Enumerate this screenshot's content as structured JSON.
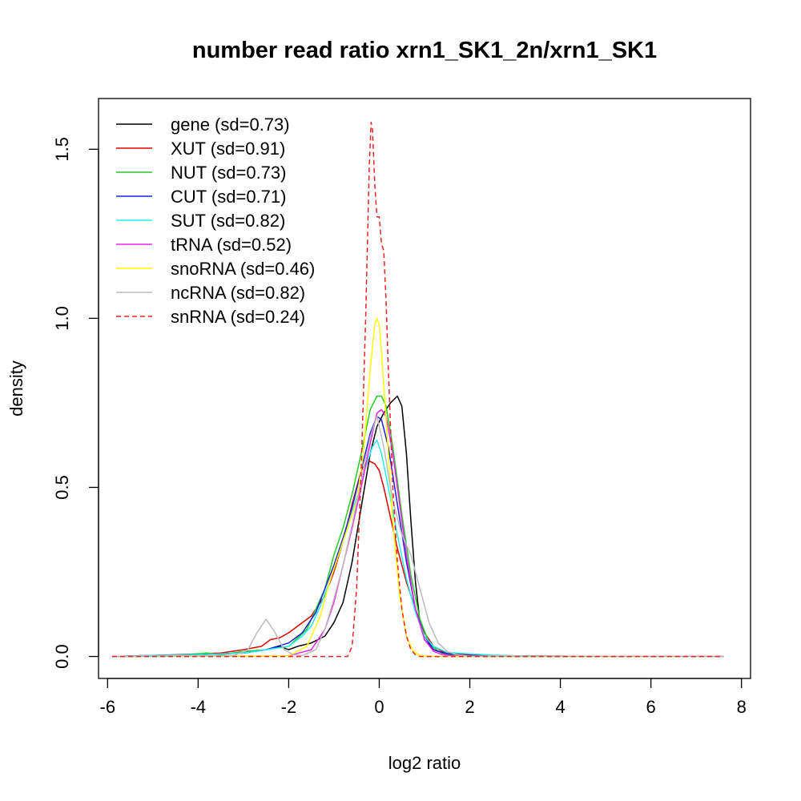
{
  "chart_data": {
    "type": "line",
    "title": "number read ratio xrn1_SK1_2n/xrn1_SK1",
    "xlabel": "log2 ratio",
    "ylabel": "density",
    "xlim": [
      -6.2,
      8.2
    ],
    "ylim": [
      -0.065,
      1.65
    ],
    "xticks": [
      -6,
      -4,
      -2,
      0,
      2,
      4,
      6,
      8
    ],
    "yticks": [
      0.0,
      0.5,
      1.0,
      1.5
    ],
    "xtick_labels": [
      "-6",
      "-4",
      "-2",
      "0",
      "2",
      "4",
      "6",
      "8"
    ],
    "ytick_labels": [
      "0.0",
      "0.5",
      "1.0",
      "1.5"
    ],
    "grid": false,
    "legend_position": "top-left",
    "series": [
      {
        "name": "gene (sd=0.73)",
        "color": "#000000",
        "dash": "solid",
        "x": [
          -5.9,
          -4.0,
          -3.0,
          -2.5,
          -2.2,
          -2.0,
          -1.8,
          -1.5,
          -1.2,
          -1.0,
          -0.8,
          -0.6,
          -0.4,
          -0.2,
          -0.05,
          0.1,
          0.25,
          0.4,
          0.5,
          0.6,
          0.7,
          0.8,
          0.9,
          1.0,
          1.2,
          1.4,
          1.6,
          2.0,
          3.0,
          5.0,
          7.6
        ],
        "y": [
          0.0,
          0.005,
          0.01,
          0.02,
          0.03,
          0.02,
          0.03,
          0.04,
          0.06,
          0.1,
          0.16,
          0.28,
          0.44,
          0.6,
          0.68,
          0.72,
          0.75,
          0.77,
          0.74,
          0.6,
          0.4,
          0.22,
          0.1,
          0.05,
          0.02,
          0.01,
          0.005,
          0.0,
          0.0,
          0.0,
          0.0
        ]
      },
      {
        "name": "XUT (sd=0.91)",
        "color": "#df0000",
        "dash": "solid",
        "x": [
          -5.9,
          -4.5,
          -3.5,
          -3.0,
          -2.6,
          -2.4,
          -2.2,
          -2.0,
          -1.8,
          -1.5,
          -1.2,
          -1.0,
          -0.8,
          -0.6,
          -0.4,
          -0.25,
          -0.1,
          0.0,
          0.1,
          0.2,
          0.4,
          0.6,
          0.8,
          1.0,
          1.2,
          1.4,
          1.6,
          2.0,
          2.5,
          3.0,
          4.0,
          5.0,
          7.6
        ],
        "y": [
          0.0,
          0.005,
          0.01,
          0.02,
          0.03,
          0.05,
          0.055,
          0.07,
          0.09,
          0.12,
          0.18,
          0.25,
          0.34,
          0.45,
          0.55,
          0.58,
          0.57,
          0.55,
          0.5,
          0.44,
          0.32,
          0.22,
          0.14,
          0.07,
          0.03,
          0.015,
          0.008,
          0.005,
          0.003,
          0.002,
          0.001,
          0.0,
          0.0
        ]
      },
      {
        "name": "NUT (sd=0.73)",
        "color": "#22cc22",
        "dash": "solid",
        "x": [
          -5.9,
          -4.5,
          -3.8,
          -3.5,
          -3.0,
          -2.5,
          -2.0,
          -1.6,
          -1.2,
          -1.0,
          -0.8,
          -0.6,
          -0.4,
          -0.2,
          -0.05,
          0.05,
          0.15,
          0.3,
          0.5,
          0.7,
          0.9,
          1.1,
          1.3,
          1.6,
          2.0,
          3.0,
          7.6
        ],
        "y": [
          0.0,
          0.003,
          0.01,
          0.005,
          0.015,
          0.02,
          0.03,
          0.08,
          0.2,
          0.3,
          0.38,
          0.48,
          0.6,
          0.73,
          0.77,
          0.77,
          0.74,
          0.62,
          0.42,
          0.24,
          0.11,
          0.04,
          0.015,
          0.005,
          0.0,
          0.0,
          0.0
        ]
      },
      {
        "name": "CUT (sd=0.71)",
        "color": "#2020dd",
        "dash": "solid",
        "x": [
          -5.9,
          -5.0,
          -4.0,
          -3.0,
          -2.5,
          -2.0,
          -1.7,
          -1.4,
          -1.2,
          -1.0,
          -0.8,
          -0.6,
          -0.4,
          -0.2,
          -0.05,
          0.05,
          0.2,
          0.4,
          0.6,
          0.8,
          1.0,
          1.2,
          1.5,
          2.0,
          3.0,
          7.6
        ],
        "y": [
          0.0,
          0.003,
          0.005,
          0.01,
          0.02,
          0.04,
          0.07,
          0.13,
          0.2,
          0.27,
          0.35,
          0.44,
          0.55,
          0.66,
          0.71,
          0.7,
          0.62,
          0.45,
          0.28,
          0.14,
          0.06,
          0.02,
          0.008,
          0.003,
          0.0,
          0.0
        ]
      },
      {
        "name": "SUT (sd=0.82)",
        "color": "#22eeee",
        "dash": "solid",
        "x": [
          -5.9,
          -5.0,
          -4.0,
          -3.0,
          -2.5,
          -2.0,
          -1.7,
          -1.5,
          -1.3,
          -1.1,
          -0.9,
          -0.7,
          -0.5,
          -0.3,
          -0.15,
          -0.05,
          0.05,
          0.2,
          0.4,
          0.6,
          0.8,
          1.0,
          1.2,
          1.5,
          2.0,
          2.5,
          3.0,
          4.0,
          7.6
        ],
        "y": [
          0.0,
          0.003,
          0.005,
          0.01,
          0.02,
          0.03,
          0.06,
          0.09,
          0.15,
          0.22,
          0.3,
          0.38,
          0.47,
          0.56,
          0.62,
          0.64,
          0.6,
          0.5,
          0.36,
          0.23,
          0.13,
          0.06,
          0.03,
          0.012,
          0.008,
          0.004,
          0.002,
          0.001,
          0.0
        ]
      },
      {
        "name": "tRNA (sd=0.52)",
        "color": "#ee22ee",
        "dash": "solid",
        "x": [
          -5.9,
          -2.0,
          -1.5,
          -1.2,
          -1.0,
          -0.8,
          -0.6,
          -0.4,
          -0.2,
          -0.05,
          0.05,
          0.15,
          0.3,
          0.45,
          0.6,
          0.8,
          1.0,
          1.2,
          1.4,
          1.6,
          2.0,
          7.6
        ],
        "y": [
          0.0,
          0.002,
          0.02,
          0.08,
          0.16,
          0.27,
          0.38,
          0.5,
          0.63,
          0.72,
          0.73,
          0.71,
          0.6,
          0.45,
          0.3,
          0.14,
          0.05,
          0.015,
          0.005,
          0.002,
          0.0,
          0.0
        ]
      },
      {
        "name": "snoRNA (sd=0.46)",
        "color": "#ffff00",
        "dash": "solid",
        "x": [
          -5.9,
          -2.0,
          -1.6,
          -1.3,
          -1.1,
          -0.9,
          -0.7,
          -0.5,
          -0.35,
          -0.2,
          -0.1,
          -0.05,
          0.0,
          0.05,
          0.15,
          0.3,
          0.45,
          0.6,
          0.75,
          0.9,
          1.1,
          1.3,
          7.6
        ],
        "y": [
          0.0,
          0.002,
          0.03,
          0.12,
          0.22,
          0.3,
          0.38,
          0.46,
          0.6,
          0.85,
          0.98,
          1.0,
          0.98,
          0.9,
          0.7,
          0.4,
          0.18,
          0.06,
          0.015,
          0.003,
          0.001,
          0.0,
          0.0
        ]
      },
      {
        "name": "ncRNA (sd=0.82)",
        "color": "#bbbbbb",
        "dash": "solid",
        "x": [
          -5.9,
          -3.2,
          -2.9,
          -2.7,
          -2.5,
          -2.3,
          -2.1,
          -1.9,
          -1.7,
          -1.4,
          -1.2,
          -1.0,
          -0.8,
          -0.6,
          -0.4,
          -0.2,
          -0.05,
          0.1,
          0.3,
          0.5,
          0.7,
          0.9,
          1.1,
          1.3,
          1.5,
          1.7,
          2.0,
          7.6
        ],
        "y": [
          0.0,
          0.003,
          0.02,
          0.07,
          0.11,
          0.07,
          0.02,
          0.005,
          0.003,
          0.02,
          0.08,
          0.17,
          0.27,
          0.39,
          0.52,
          0.65,
          0.71,
          0.62,
          0.46,
          0.36,
          0.3,
          0.2,
          0.1,
          0.04,
          0.015,
          0.005,
          0.001,
          0.0
        ]
      },
      {
        "name": "snRNA (sd=0.24)",
        "color": "#ee2222",
        "dash": "dashed",
        "x": [
          -5.9,
          -1.0,
          -0.7,
          -0.6,
          -0.5,
          -0.4,
          -0.3,
          -0.22,
          -0.18,
          -0.15,
          -0.1,
          -0.05,
          0.0,
          0.05,
          0.1,
          0.15,
          0.2,
          0.3,
          0.4,
          0.5,
          0.6,
          0.7,
          0.8,
          0.9,
          7.6
        ],
        "y": [
          0.0,
          0.0,
          0.0,
          0.03,
          0.2,
          0.55,
          1.0,
          1.45,
          1.58,
          1.56,
          1.4,
          1.3,
          1.3,
          1.22,
          1.2,
          1.05,
          0.85,
          0.5,
          0.28,
          0.14,
          0.06,
          0.02,
          0.005,
          0.0,
          0.0
        ]
      }
    ]
  }
}
